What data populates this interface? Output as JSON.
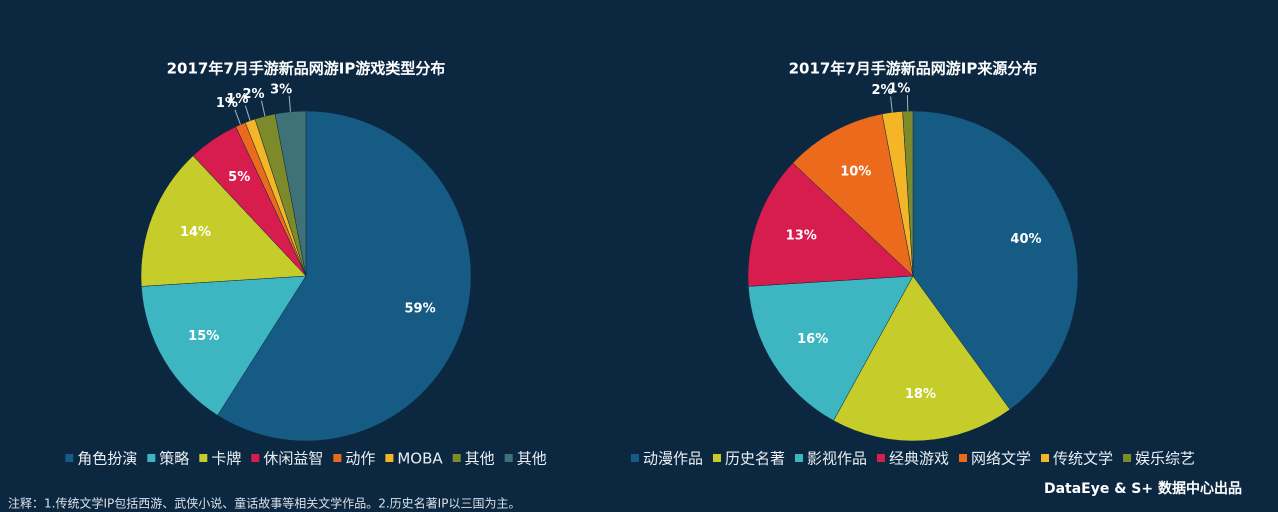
{
  "chart_data": [
    {
      "type": "pie",
      "title": "2017年7月手游新品网游IP游戏类型分布",
      "categories": [
        "角色扮演",
        "策略",
        "卡牌",
        "休闲益智",
        "动作",
        "MOBA",
        "其他",
        "其他"
      ],
      "values": [
        59,
        15,
        14,
        5,
        1,
        1,
        2,
        3
      ],
      "value_labels": [
        "59%",
        "15%",
        "14%",
        "5%",
        "1%",
        "1%",
        "2%",
        "3%"
      ],
      "colors": [
        "#155b84",
        "#3db6c2",
        "#c6cc2a",
        "#d71c4e",
        "#ec6a1c",
        "#f4b526",
        "#7c8a2a",
        "#3f7178"
      ]
    },
    {
      "type": "pie",
      "title": "2017年7月手游新品网游IP来源分布",
      "categories": [
        "动漫作品",
        "历史名著",
        "影视作品",
        "经典游戏",
        "网络文学",
        "传统文学",
        "娱乐综艺"
      ],
      "values": [
        40,
        18,
        16,
        13,
        10,
        2,
        1
      ],
      "value_labels": [
        "40%",
        "18%",
        "16%",
        "13%",
        "10%",
        "2%",
        "1%"
      ],
      "colors": [
        "#155b84",
        "#c6cc2a",
        "#3db6c2",
        "#d71c4e",
        "#ec6a1c",
        "#f4b526",
        "#7c8a2a"
      ]
    }
  ],
  "footnote": "注释：1.传统文学IP包括西游、武侠小说、童话故事等相关文学作品。2.历史名著IP以三国为主。",
  "brand": "DataEye & S+ 数据中心出品"
}
